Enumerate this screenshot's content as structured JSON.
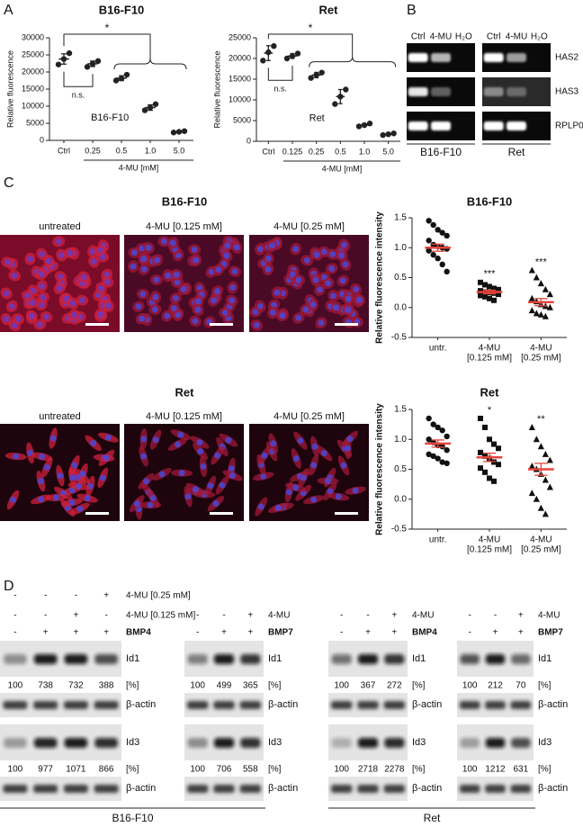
{
  "panel_labels": [
    "A",
    "B",
    "C",
    "D"
  ],
  "chart_data": [
    {
      "type": "dotplot",
      "title": "B16-F10",
      "inset_label": "B16-F10",
      "y_label": "Relative fluorescence",
      "x_label": "4-MU [mM]",
      "categories": [
        [
          "Ctrl"
        ],
        [
          "0.25"
        ],
        [
          "0.5"
        ],
        [
          "1.0"
        ],
        [
          "5.0"
        ]
      ],
      "points": [
        [
          22200,
          23800,
          25500
        ],
        [
          21500,
          22400,
          23200
        ],
        [
          17500,
          18100,
          19200
        ],
        [
          8800,
          9600,
          10600
        ],
        [
          2300,
          2500,
          2700
        ]
      ],
      "means": [
        23800,
        22400,
        18200,
        9600,
        2500
      ],
      "errors": [
        1500,
        800,
        700,
        800,
        200
      ],
      "ylim": [
        0,
        30000
      ],
      "yticks": [
        0,
        5000,
        10000,
        15000,
        20000,
        25000,
        30000
      ],
      "marker": "circle",
      "marker_color": "#222222",
      "mean_color": "#222222",
      "significance": {
        "overall": "*",
        "pair": "n.s."
      }
    },
    {
      "type": "dotplot",
      "title": "Ret",
      "inset_label": "Ret",
      "y_label": "Relative fluorescence",
      "x_label": "4-MU [mM]",
      "categories": [
        [
          "Ctrl"
        ],
        [
          "0.125"
        ],
        [
          "0.25"
        ],
        [
          "0.5"
        ],
        [
          "1.0"
        ],
        [
          "5.0"
        ]
      ],
      "points": [
        [
          19500,
          21500,
          23000
        ],
        [
          20000,
          20600,
          21200
        ],
        [
          15300,
          16000,
          16600
        ],
        [
          9000,
          10800,
          12500
        ],
        [
          3600,
          3900,
          4300
        ],
        [
          1500,
          1700,
          1900
        ]
      ],
      "means": [
        21300,
        20600,
        16000,
        10800,
        3900,
        1700
      ],
      "errors": [
        1800,
        600,
        650,
        1700,
        350,
        200
      ],
      "ylim": [
        0,
        25000
      ],
      "yticks": [
        0,
        5000,
        10000,
        15000,
        20000,
        25000
      ],
      "marker": "circle",
      "marker_color": "#222222",
      "mean_color": "#222222",
      "significance": {
        "overall": "*",
        "pair": "n.s."
      }
    },
    {
      "type": "dotplot",
      "title": "B16-F10",
      "y_label": "Relative fluorescence intensity",
      "categories": [
        [
          "untr."
        ],
        [
          "4-MU",
          "[0.125 mM]"
        ],
        [
          "4-MU",
          "[0.25 mM]"
        ]
      ],
      "points": [
        [
          1.45,
          1.38,
          1.3,
          1.25,
          1.2,
          1.12,
          1.05,
          1.02,
          1.0,
          0.98,
          0.95,
          0.88,
          0.82,
          0.72,
          0.6
        ],
        [
          0.42,
          0.38,
          0.35,
          0.32,
          0.3,
          0.28,
          0.26,
          0.25,
          0.24,
          0.22,
          0.2,
          0.18,
          0.15,
          0.12
        ],
        [
          0.62,
          0.5,
          0.4,
          0.3,
          0.22,
          0.15,
          0.1,
          0.05,
          0.02,
          0.0,
          -0.05,
          -0.1,
          -0.12,
          -0.15
        ]
      ],
      "means": [
        1.0,
        0.26,
        0.09
      ],
      "errors": [
        0.06,
        0.03,
        0.06
      ],
      "ylim": [
        -0.5,
        1.5
      ],
      "yticks": [
        -0.5,
        {
          "value": 0,
          "label": "0.0"
        },
        0.5,
        {
          "value": 1,
          "label": "1.0"
        },
        1.5
      ],
      "markers": [
        "circle",
        "square",
        "triangle"
      ],
      "marker_color": "#111111",
      "mean_color": "#e8453c",
      "significance": [
        null,
        "***",
        "***"
      ]
    },
    {
      "type": "dotplot",
      "title": "Ret",
      "y_label": "Relative fluorescence intensity",
      "categories": [
        [
          "untr."
        ],
        [
          "4-MU",
          "[0.125 mM]"
        ],
        [
          "4-MU",
          "[0.25 mM]"
        ]
      ],
      "points": [
        [
          1.35,
          1.25,
          1.2,
          1.15,
          1.05,
          1.0,
          0.95,
          0.9,
          0.88,
          0.82,
          0.75,
          0.72,
          0.68,
          0.62,
          0.6
        ],
        [
          1.35,
          1.2,
          1.0,
          0.92,
          0.85,
          0.78,
          0.72,
          0.68,
          0.62,
          0.58,
          0.52,
          0.45,
          0.35,
          0.3
        ],
        [
          1.2,
          1.0,
          0.88,
          0.75,
          0.65,
          0.55,
          0.5,
          0.42,
          0.32,
          0.2,
          0.1,
          0.0,
          -0.15,
          -0.25
        ]
      ],
      "means": [
        0.93,
        0.7,
        0.5
      ],
      "errors": [
        0.06,
        0.07,
        0.1
      ],
      "ylim": [
        -0.5,
        1.5
      ],
      "yticks": [
        -0.5,
        {
          "value": 0,
          "label": "0.0"
        },
        0.5,
        {
          "value": 1,
          "label": "1.0"
        },
        1.5
      ],
      "markers": [
        "circle",
        "square",
        "triangle"
      ],
      "marker_color": "#111111",
      "mean_color": "#e8453c",
      "significance": [
        null,
        "*",
        "**"
      ]
    }
  ],
  "gels": {
    "lanes": [
      "Ctrl",
      "4-MU",
      "H₂O"
    ],
    "genes": [
      "HAS2",
      "HAS3",
      "RPLP0"
    ],
    "cell_lines": [
      "B16-F10",
      "Ret"
    ]
  },
  "microscopy": [
    {
      "title": "B16-F10",
      "conditions": [
        "untreated",
        "4-MU [0.125 mM]",
        "4-MU [0.25 mM]"
      ]
    },
    {
      "title": "Ret",
      "conditions": [
        "untreated",
        "4-MU [0.125 mM]",
        "4-MU [0.25 mM]"
      ]
    }
  ],
  "blots": {
    "percent_label": "[%]",
    "loading_control": "β-actin",
    "groups": [
      "B16-F10",
      "Ret"
    ],
    "panels": [
      {
        "treatments": [
          {
            "label": "4-MU [0.25 mM]",
            "signs": [
              "-",
              "-",
              "-",
              "+"
            ]
          },
          {
            "label": "4-MU [0.125 mM]",
            "signs": [
              "-",
              "-",
              "+",
              "-"
            ]
          },
          {
            "label": "BMP4",
            "signs": [
              "-",
              "+",
              "+",
              "+"
            ]
          }
        ],
        "targets": [
          {
            "label": "Id1",
            "percent": [
              100,
              738,
              732,
              388
            ]
          },
          {
            "label": "Id3",
            "percent": [
              100,
              977,
              1071,
              866
            ]
          }
        ]
      },
      {
        "treatments": [
          {
            "label": "4-MU",
            "signs": [
              "-",
              "-",
              "+"
            ]
          },
          {
            "label": "BMP7",
            "signs": [
              "-",
              "+",
              "+"
            ]
          }
        ],
        "targets": [
          {
            "label": "Id1",
            "percent": [
              100,
              499,
              365
            ]
          },
          {
            "label": "Id3",
            "percent": [
              100,
              706,
              558
            ]
          }
        ]
      },
      {
        "treatments": [
          {
            "label": "4-MU",
            "signs": [
              "-",
              "-",
              "+"
            ]
          },
          {
            "label": "BMP4",
            "signs": [
              "-",
              "+",
              "+"
            ]
          }
        ],
        "targets": [
          {
            "label": "Id1",
            "percent": [
              100,
              367,
              272
            ]
          },
          {
            "label": "Id3",
            "percent": [
              100,
              2718,
              2278
            ]
          }
        ]
      },
      {
        "treatments": [
          {
            "label": "4-MU",
            "signs": [
              "-",
              "-",
              "+"
            ]
          },
          {
            "label": "BMP7",
            "signs": [
              "-",
              "+",
              "+"
            ]
          }
        ],
        "targets": [
          {
            "label": "Id1",
            "percent": [
              100,
              212,
              70
            ]
          },
          {
            "label": "Id3",
            "percent": [
              100,
              1212,
              631
            ]
          }
        ]
      }
    ]
  }
}
